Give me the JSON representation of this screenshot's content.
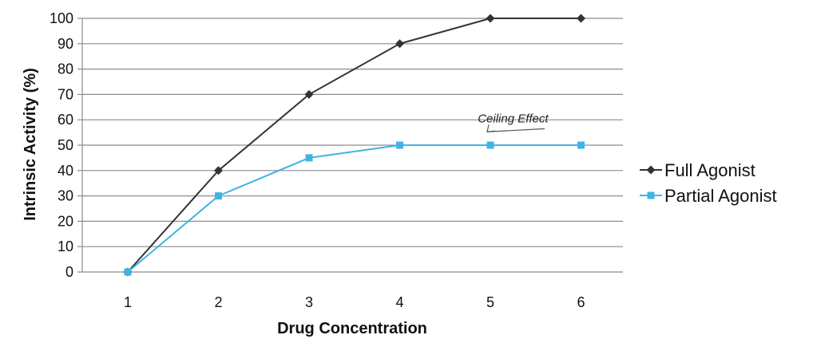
{
  "chart_data": {
    "type": "line",
    "title": "",
    "xlabel": "Drug Concentration",
    "ylabel": "Intrinsic Activity (%)",
    "x": [
      1,
      2,
      3,
      4,
      5,
      6
    ],
    "ylim": [
      0,
      100
    ],
    "yticks": [
      0,
      10,
      20,
      30,
      40,
      50,
      60,
      70,
      80,
      90,
      100
    ],
    "grid": true,
    "legend": "right",
    "series": [
      {
        "name": "Full Agonist",
        "values": [
          0,
          40,
          70,
          90,
          100,
          100
        ],
        "color": "#333333",
        "marker": "diamond"
      },
      {
        "name": "Partial Agonist",
        "values": [
          0,
          30,
          45,
          50,
          50,
          50
        ],
        "color": "#3fb4e3",
        "marker": "square"
      }
    ],
    "annotations": [
      {
        "text": "Ceiling Effect",
        "x": 5.25,
        "y": 59,
        "arrow_to": [
          5.0,
          54
        ]
      }
    ]
  }
}
